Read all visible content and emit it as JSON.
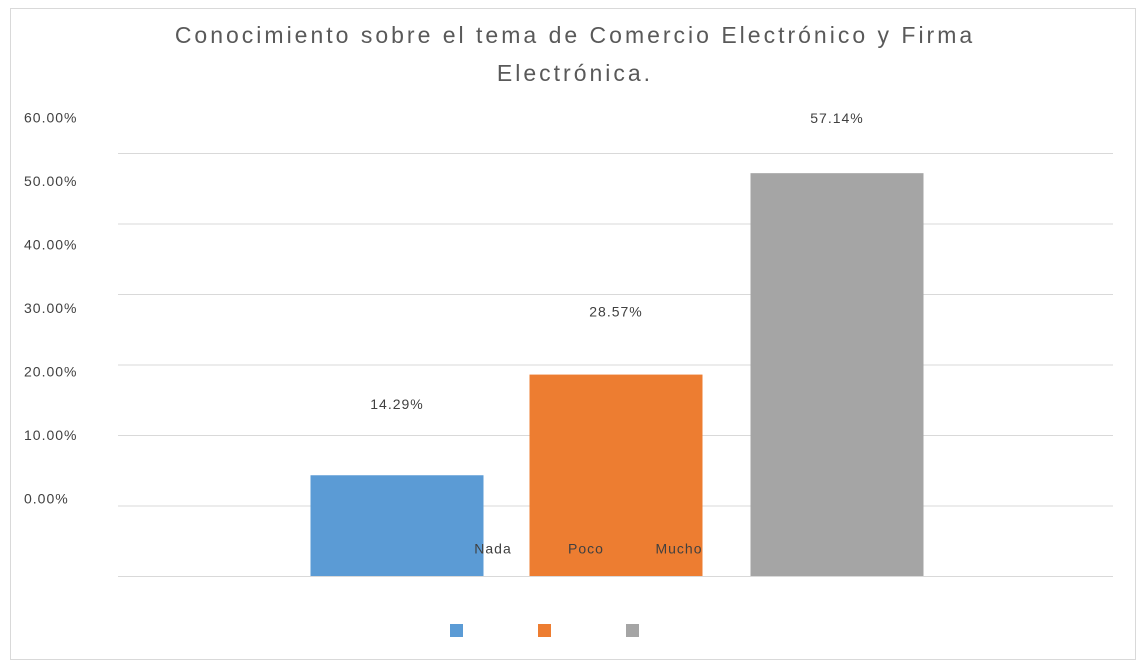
{
  "chart_data": {
    "type": "bar",
    "title": "Conocimiento sobre el tema de Comercio Electrónico y Firma Electrónica.",
    "categories": [
      "Nada",
      "Poco",
      "Mucho"
    ],
    "values": [
      14.29,
      28.57,
      57.14
    ],
    "value_labels": [
      "14.29%",
      "28.57%",
      "57.14%"
    ],
    "colors": [
      "#5b9bd5",
      "#ed7d31",
      "#a5a5a5"
    ],
    "ylim": [
      0,
      60
    ],
    "yticks": [
      {
        "value": 0,
        "label": "0.00%"
      },
      {
        "value": 10,
        "label": "10.00%"
      },
      {
        "value": 20,
        "label": "20.00%"
      },
      {
        "value": 30,
        "label": "30.00%"
      },
      {
        "value": 40,
        "label": "40.00%"
      },
      {
        "value": 50,
        "label": "50.00%"
      },
      {
        "value": 60,
        "label": "60.00%"
      }
    ],
    "grid": true
  }
}
